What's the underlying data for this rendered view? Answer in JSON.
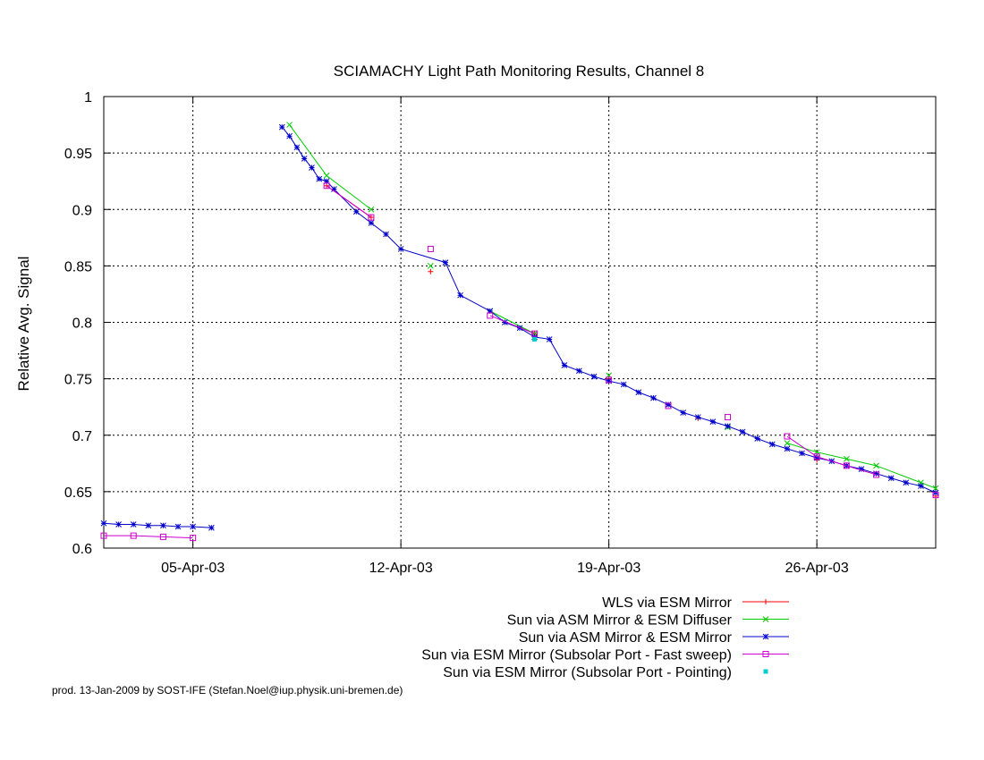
{
  "chart_data": {
    "type": "line",
    "title": "SCIAMACHY Light Path Monitoring Results, Channel 8",
    "xlabel": "",
    "ylabel": "Relative Avg. Signal",
    "x_axis": {
      "kind": "date",
      "range": [
        "2003-04-02",
        "2003-04-30"
      ],
      "ticks": [
        {
          "date": "2003-04-05",
          "label": "05-Apr-03"
        },
        {
          "date": "2003-04-12",
          "label": "12-Apr-03"
        },
        {
          "date": "2003-04-19",
          "label": "19-Apr-03"
        },
        {
          "date": "2003-04-26",
          "label": "26-Apr-03"
        }
      ]
    },
    "y_axis": {
      "range": [
        0.6,
        1.0
      ],
      "ticks": [
        {
          "value": 0.6,
          "label": "0.6"
        },
        {
          "value": 0.65,
          "label": "0.65"
        },
        {
          "value": 0.7,
          "label": "0.7"
        },
        {
          "value": 0.75,
          "label": "0.75"
        },
        {
          "value": 0.8,
          "label": "0.8"
        },
        {
          "value": 0.85,
          "label": "0.85"
        },
        {
          "value": 0.9,
          "label": "0.9"
        },
        {
          "value": 0.95,
          "label": "0.95"
        },
        {
          "value": 1,
          "label": "1"
        }
      ]
    },
    "grid": true,
    "legend_position": "bottom-right",
    "series": [
      {
        "name": "WLS via ESM Mirror",
        "color": "#ff0000",
        "marker": "plus",
        "x": [
          "2003-04-09 12:00",
          "2003-04-11 00:00",
          "2003-04-13 00:00",
          "2003-04-16 12:00",
          "2003-04-19 00:00",
          "2003-04-22 00:00",
          "2003-04-26 00:00",
          "2003-04-30 00:00"
        ],
        "y": [
          0.921,
          0.893,
          0.845,
          0.79,
          0.75,
          0.715,
          0.678,
          0.646
        ]
      },
      {
        "name": "Sun via ASM Mirror & ESM Diffuser",
        "color": "#00cc00",
        "marker": "cross",
        "x": [
          "2003-04-08 06:00",
          "2003-04-09 12:00",
          "2003-04-11 00:00",
          "2003-04-13 00:00",
          "2003-04-15 00:00",
          "2003-04-16 12:00",
          "2003-04-19 00:00",
          "2003-04-21 00:00",
          "2003-04-23 00:00",
          "2003-04-25 00:00",
          "2003-04-26 00:00",
          "2003-04-27 00:00",
          "2003-04-28 00:00",
          "2003-04-29 12:00",
          "2003-04-30 00:00"
        ],
        "y": [
          0.975,
          0.93,
          0.9,
          0.85,
          0.81,
          0.79,
          0.753,
          0.727,
          0.707,
          0.693,
          0.685,
          0.679,
          0.673,
          0.658,
          0.653
        ]
      },
      {
        "name": "Sun via ASM Mirror & ESM Mirror",
        "color": "#0000cc",
        "marker": "star",
        "x": [
          "2003-04-02 00:00",
          "2003-04-02 12:00",
          "2003-04-03 00:00",
          "2003-04-03 12:00",
          "2003-04-04 00:00",
          "2003-04-04 12:00",
          "2003-04-05 00:00",
          "2003-04-05 15:00",
          "2003-04-08 00:00",
          "2003-04-08 06:00",
          "2003-04-08 12:00",
          "2003-04-08 18:00",
          "2003-04-09 00:00",
          "2003-04-09 06:00",
          "2003-04-09 12:00",
          "2003-04-09 18:00",
          "2003-04-10 12:00",
          "2003-04-11 00:00",
          "2003-04-11 12:00",
          "2003-04-12 00:00",
          "2003-04-13 12:00",
          "2003-04-14 00:00",
          "2003-04-15 00:00",
          "2003-04-15 12:00",
          "2003-04-16 00:00",
          "2003-04-16 12:00",
          "2003-04-17 00:00",
          "2003-04-17 12:00",
          "2003-04-18 00:00",
          "2003-04-18 12:00",
          "2003-04-19 00:00",
          "2003-04-19 12:00",
          "2003-04-20 00:00",
          "2003-04-20 12:00",
          "2003-04-21 00:00",
          "2003-04-21 12:00",
          "2003-04-22 00:00",
          "2003-04-22 12:00",
          "2003-04-23 00:00",
          "2003-04-23 12:00",
          "2003-04-24 00:00",
          "2003-04-24 12:00",
          "2003-04-25 00:00",
          "2003-04-25 12:00",
          "2003-04-26 00:00",
          "2003-04-26 12:00",
          "2003-04-27 00:00",
          "2003-04-27 12:00",
          "2003-04-28 00:00",
          "2003-04-28 12:00",
          "2003-04-29 00:00",
          "2003-04-29 12:00",
          "2003-04-30 00:00"
        ],
        "y": [
          0.622,
          0.621,
          0.621,
          0.62,
          0.62,
          0.619,
          0.619,
          0.618,
          0.973,
          0.965,
          0.955,
          0.945,
          0.937,
          0.927,
          0.925,
          0.918,
          0.898,
          0.888,
          0.878,
          0.865,
          0.853,
          0.824,
          0.81,
          0.8,
          0.795,
          0.787,
          0.785,
          0.762,
          0.757,
          0.752,
          0.748,
          0.745,
          0.738,
          0.733,
          0.727,
          0.72,
          0.716,
          0.712,
          0.708,
          0.703,
          0.697,
          0.692,
          0.688,
          0.684,
          0.68,
          0.677,
          0.673,
          0.67,
          0.666,
          0.662,
          0.658,
          0.655,
          0.649
        ]
      },
      {
        "name": "Sun via ESM Mirror (Subsolar Port - Fast sweep)",
        "color": "#cc00cc",
        "marker": "square",
        "x": [
          "2003-04-02 00:00",
          "2003-04-03 00:00",
          "2003-04-04 00:00",
          "2003-04-05 00:00",
          "2003-04-09 12:00",
          "2003-04-11 00:00",
          "2003-04-13 00:00",
          "2003-04-15 00:00",
          "2003-04-16 12:00",
          "2003-04-19 00:00",
          "2003-04-21 00:00",
          "2003-04-23 00:00",
          "2003-04-25 00:00",
          "2003-04-26 00:00",
          "2003-04-27 00:00",
          "2003-04-28 00:00",
          "2003-04-30 00:00"
        ],
        "y": [
          0.611,
          0.611,
          0.61,
          0.609,
          0.921,
          0.893,
          0.865,
          0.806,
          0.79,
          0.749,
          0.726,
          0.716,
          0.699,
          0.681,
          0.673,
          0.665,
          0.647
        ]
      },
      {
        "name": "Sun via ESM Mirror (Subsolar Port - Pointing)",
        "color": "#00cccc",
        "marker": "dot",
        "x": [
          "2003-04-16 12:00"
        ],
        "y": [
          0.785
        ]
      }
    ]
  },
  "credit": "prod. 13-Jan-2009 by SOST-IFE (Stefan.Noel@iup.physik.uni-bremen.de)"
}
